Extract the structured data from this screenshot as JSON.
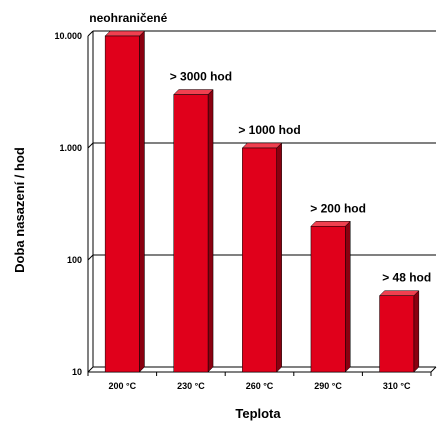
{
  "chart_data": {
    "type": "bar",
    "ylabel": "Doba nasazení / hod",
    "xlabel": "Teplota",
    "y_scale": "log",
    "ylim": [
      10,
      10000
    ],
    "grid": true,
    "y_ticks": [
      {
        "value": 10,
        "label": "10"
      },
      {
        "value": 100,
        "label": "100"
      },
      {
        "value": 1000,
        "label": "1.000"
      },
      {
        "value": 10000,
        "label": "10.000"
      }
    ],
    "categories": [
      "200 °C",
      "230 °C",
      "260 °C",
      "290 °C",
      "310 °C"
    ],
    "values": [
      10000,
      3000,
      1000,
      200,
      48
    ],
    "data_labels": [
      "neohraničené",
      "> 3000 hod",
      "> 1000 hod",
      "> 200 hod",
      "> 48 hod"
    ],
    "colors": {
      "bar_front": "#e0001b",
      "bar_side": "#8a0010",
      "bar_top": "#f04050",
      "grid": "#000000",
      "wall": "#ffffff"
    }
  }
}
